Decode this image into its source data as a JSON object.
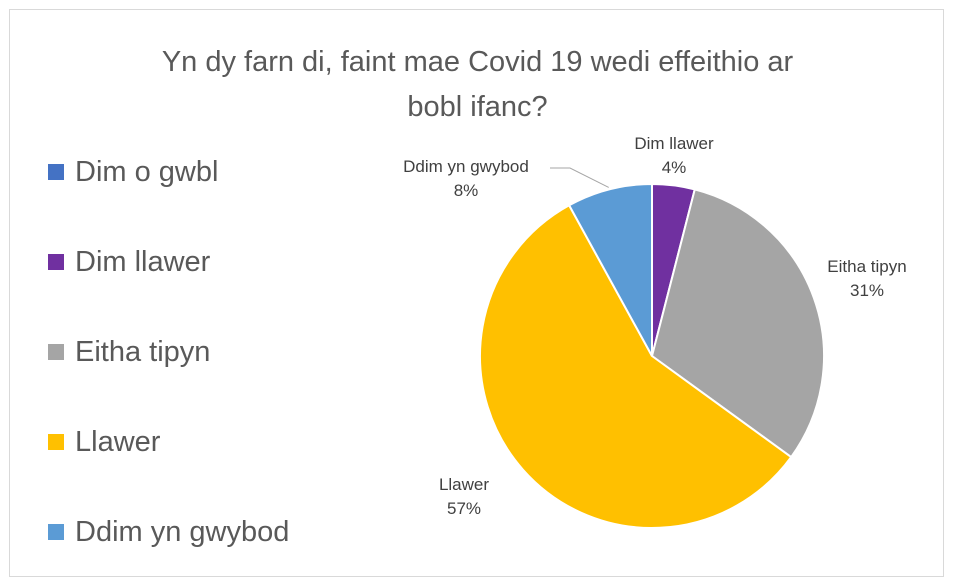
{
  "chart_data": {
    "type": "pie",
    "title": "Yn dy farn di, faint mae Covid 19 wedi effeithio ar bobl ifanc?",
    "title_lines": [
      "Yn dy farn di, faint mae Covid 19 wedi effeithio ar",
      "bobl ifanc?"
    ],
    "legend_position": "left",
    "slices": [
      {
        "label": "Dim o gwbl",
        "value": 0,
        "value_label": "",
        "color": "#4472c4"
      },
      {
        "label": "Dim llawer",
        "value": 4,
        "value_label": "4%",
        "color": "#7030a0"
      },
      {
        "label": "Eitha tipyn",
        "value": 31,
        "value_label": "31%",
        "color": "#a5a5a5"
      },
      {
        "label": "Llawer",
        "value": 57,
        "value_label": "57%",
        "color": "#ffc000"
      },
      {
        "label": "Ddim yn gwybod",
        "value": 8,
        "value_label": "8%",
        "color": "#5b9bd5"
      }
    ]
  }
}
